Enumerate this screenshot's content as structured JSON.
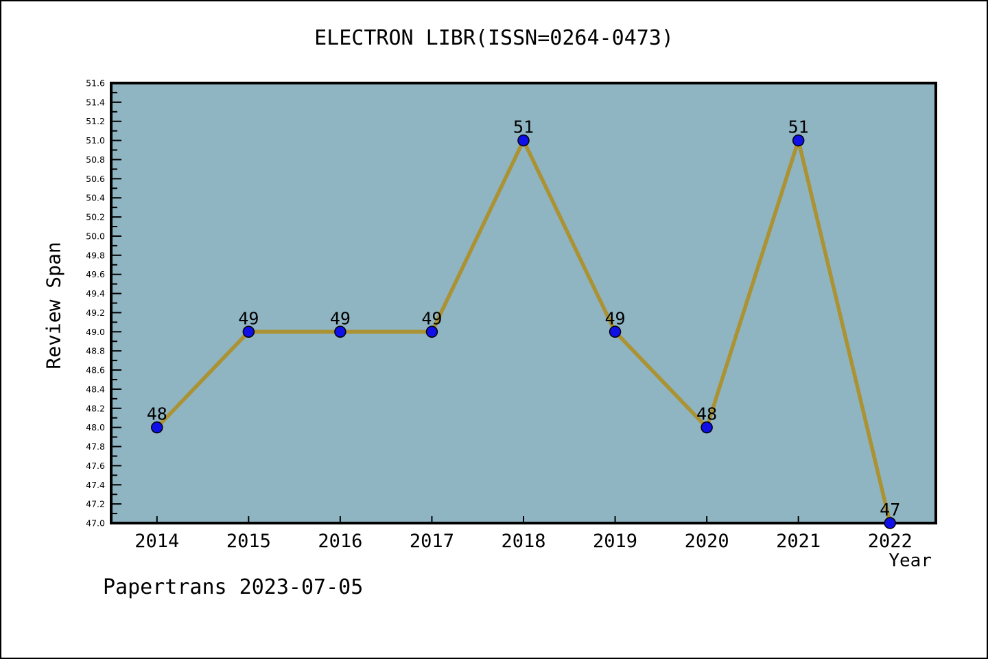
{
  "chart_data": {
    "type": "line",
    "title": "ELECTRON LIBR(ISSN=0264-0473)",
    "xlabel": "Year",
    "ylabel": "Review Span",
    "categories": [
      2014,
      2015,
      2016,
      2017,
      2018,
      2019,
      2020,
      2021,
      2022
    ],
    "values": [
      48,
      49,
      49,
      49,
      51,
      49,
      48,
      51,
      47
    ],
    "point_labels": [
      "48",
      "49",
      "49",
      "49",
      "51",
      "49",
      "48",
      "51",
      "47"
    ],
    "xlim": [
      2013.5,
      2022.5
    ],
    "ylim": [
      47.0,
      51.6
    ],
    "y_major_step": 0.2,
    "y_minor_step": 0.1,
    "grid": "off",
    "legend": "none",
    "colors": {
      "line": "#AB9232",
      "marker_fill": "#0F0FE8",
      "marker_edge": "#000000",
      "plot_bg": "#8FB4C2",
      "frame": "#000000",
      "text": "#000000"
    }
  },
  "footer": {
    "text": "Papertrans 2023-07-05"
  }
}
